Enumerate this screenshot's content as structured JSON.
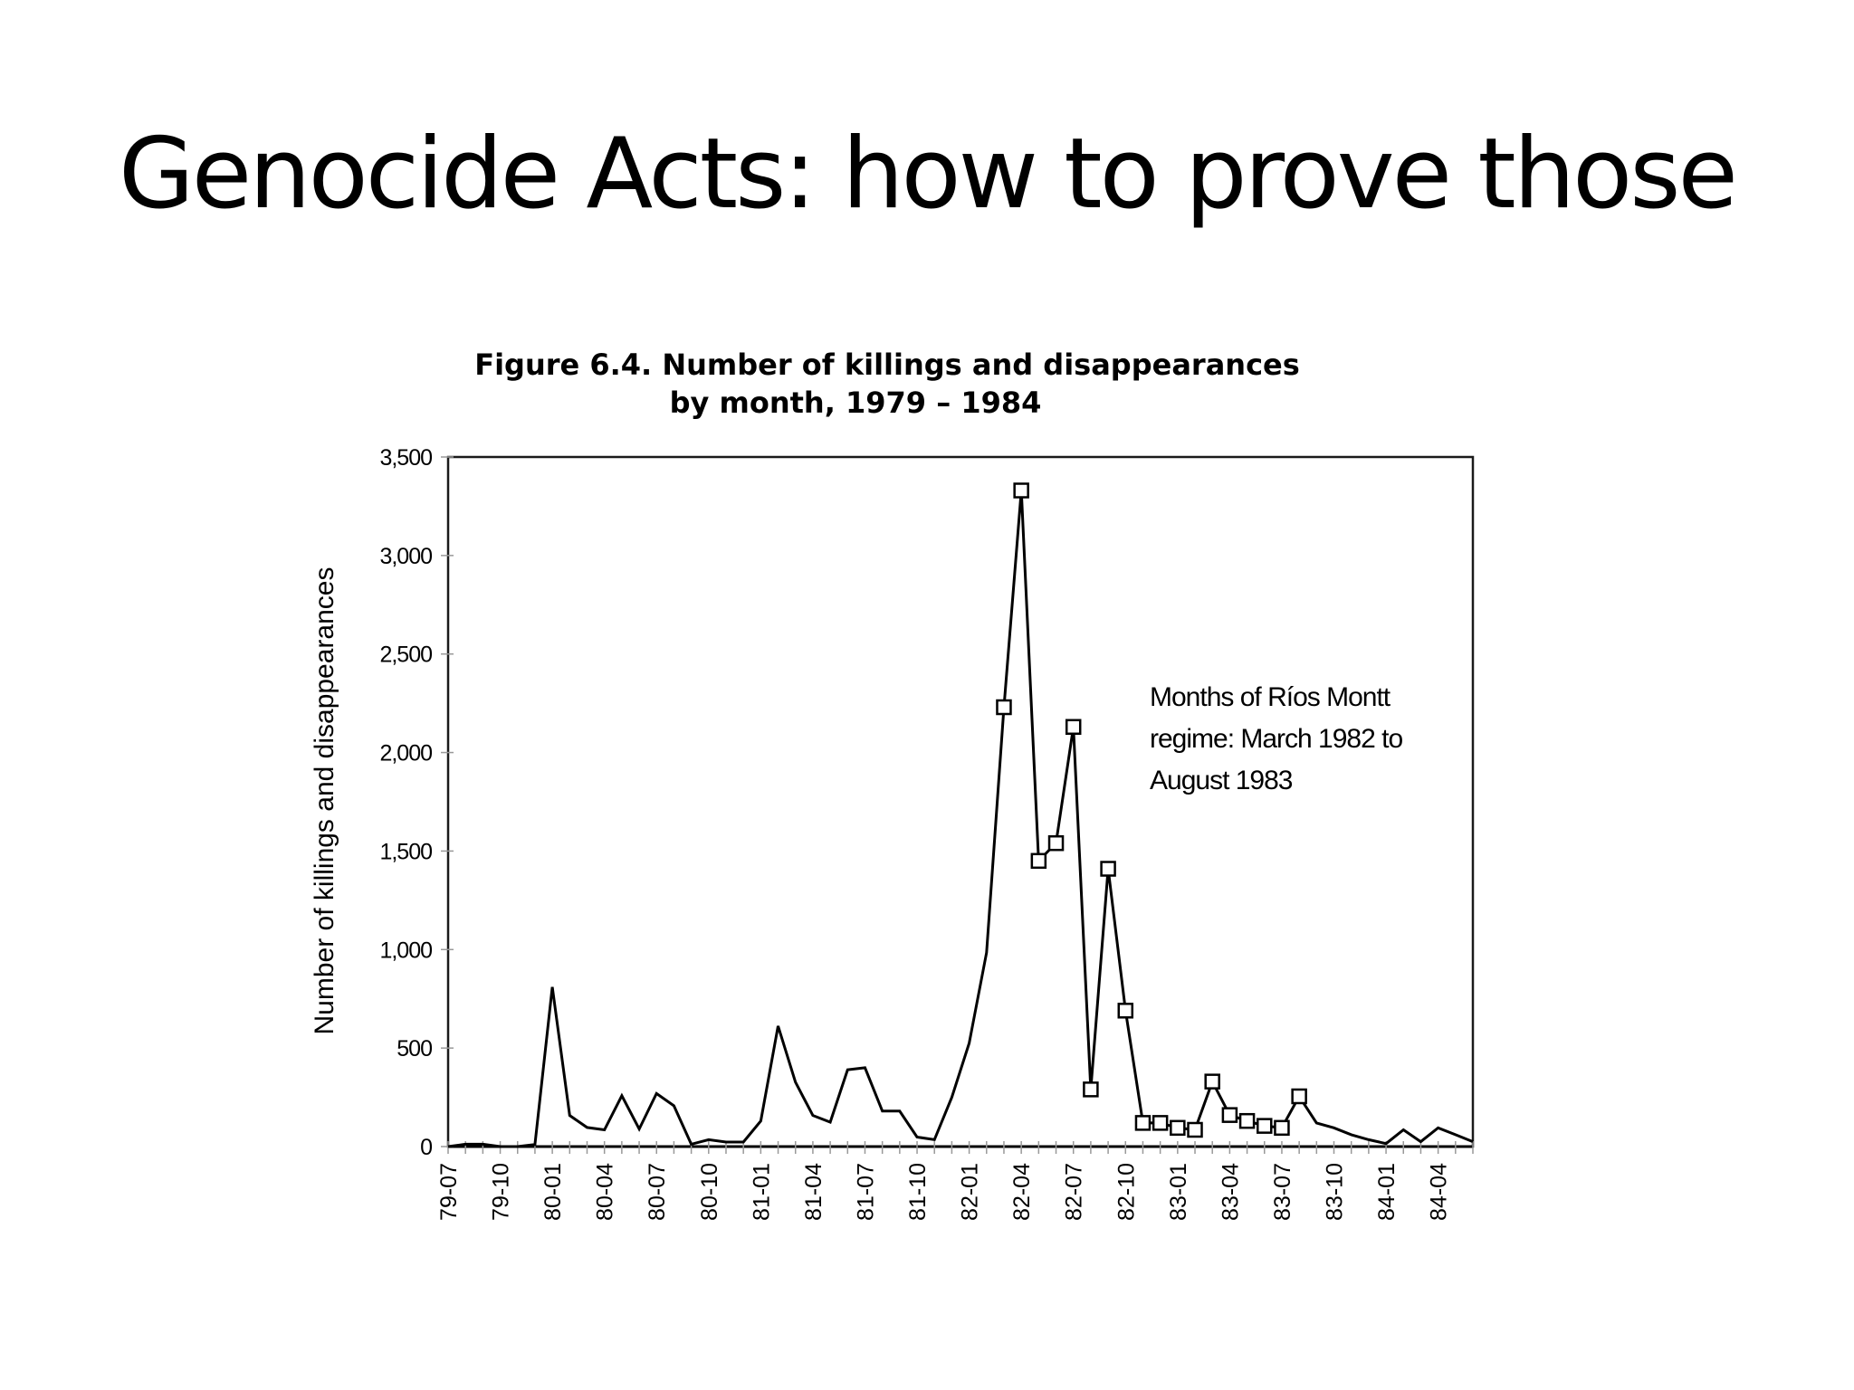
{
  "slide": {
    "title": "Genocide Acts: how to prove those"
  },
  "figure": {
    "title_line1": "Figure 6.4. Number of killings and disappearances",
    "title_line2": "by month, 1979 – 1984",
    "annotation": [
      "Months of Ríos Montt",
      "regime: March 1982 to",
      "August 1983"
    ]
  },
  "chart_data": {
    "type": "line",
    "title": "Figure 6.4. Number of killings and disappearances by month, 1979 – 1984",
    "xlabel": "",
    "ylabel": "Number of killings and disappearances",
    "ylim": [
      0,
      3500
    ],
    "yticks": [
      0,
      500,
      1000,
      1500,
      2000,
      2500,
      3000,
      3500
    ],
    "ytick_labels": [
      "0",
      "500",
      "1,000",
      "1,500",
      "2,000",
      "2,500",
      "3,000",
      "3,500"
    ],
    "xtick_labels": [
      "79-07",
      "79-10",
      "80-01",
      "80-04",
      "80-07",
      "80-10",
      "81-01",
      "81-04",
      "81-07",
      "81-10",
      "82-01",
      "82-04",
      "82-07",
      "82-10",
      "83-01",
      "83-04",
      "83-07",
      "83-10",
      "84-01",
      "84-04"
    ],
    "grid": false,
    "legend": null,
    "annotation": "Months of Ríos Montt regime: March 1982 to August 1983",
    "marker_range": [
      "82-03",
      "83-08"
    ],
    "x": [
      "79-07",
      "79-08",
      "79-09",
      "79-10",
      "79-11",
      "79-12",
      "80-01",
      "80-02",
      "80-03",
      "80-04",
      "80-05",
      "80-06",
      "80-07",
      "80-08",
      "80-09",
      "80-10",
      "80-11",
      "80-12",
      "81-01",
      "81-02",
      "81-03",
      "81-04",
      "81-05",
      "81-06",
      "81-07",
      "81-08",
      "81-09",
      "81-10",
      "81-11",
      "81-12",
      "82-01",
      "82-02",
      "82-03",
      "82-04",
      "82-05",
      "82-06",
      "82-07",
      "82-08",
      "82-09",
      "82-10",
      "82-11",
      "82-12",
      "83-01",
      "83-02",
      "83-03",
      "83-04",
      "83-05",
      "83-06",
      "83-07",
      "83-08",
      "83-09",
      "83-10",
      "83-11",
      "83-12",
      "84-01",
      "84-02",
      "84-03",
      "84-04",
      "84-05",
      "84-06"
    ],
    "series": [
      {
        "name": "Killings and disappearances",
        "values": [
          0,
          12,
          12,
          0,
          0,
          10,
          810,
          158,
          97,
          85,
          258,
          89,
          269,
          207,
          12,
          35,
          23,
          23,
          130,
          612,
          327,
          158,
          124,
          390,
          400,
          180,
          180,
          48,
          35,
          250,
          525,
          985,
          2230,
          3330,
          1450,
          1540,
          2130,
          290,
          1410,
          690,
          120,
          120,
          95,
          85,
          330,
          160,
          130,
          105,
          95,
          255,
          120,
          95,
          60,
          35,
          15,
          85,
          25,
          95,
          60,
          25
        ]
      }
    ]
  }
}
